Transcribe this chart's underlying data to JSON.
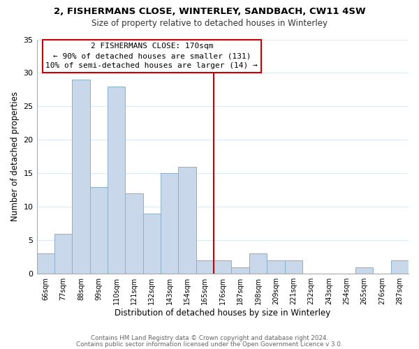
{
  "title": "2, FISHERMANS CLOSE, WINTERLEY, SANDBACH, CW11 4SW",
  "subtitle": "Size of property relative to detached houses in Winterley",
  "xlabel": "Distribution of detached houses by size in Winterley",
  "ylabel": "Number of detached properties",
  "bar_color": "#c8d8ea",
  "bar_edge_color": "#8ab0cc",
  "categories": [
    "66sqm",
    "77sqm",
    "88sqm",
    "99sqm",
    "110sqm",
    "121sqm",
    "132sqm",
    "143sqm",
    "154sqm",
    "165sqm",
    "176sqm",
    "187sqm",
    "198sqm",
    "209sqm",
    "221sqm",
    "232sqm",
    "243sqm",
    "254sqm",
    "265sqm",
    "276sqm",
    "287sqm"
  ],
  "values": [
    3,
    6,
    29,
    13,
    28,
    12,
    9,
    15,
    16,
    2,
    2,
    1,
    3,
    2,
    2,
    0,
    0,
    0,
    1,
    0,
    2
  ],
  "ylim": [
    0,
    35
  ],
  "yticks": [
    0,
    5,
    10,
    15,
    20,
    25,
    30,
    35
  ],
  "annotation_title": "2 FISHERMANS CLOSE: 170sqm",
  "annotation_line1": "← 90% of detached houses are smaller (131)",
  "annotation_line2": "10% of semi-detached houses are larger (14) →",
  "vline_index": 9.5,
  "footer_line1": "Contains HM Land Registry data © Crown copyright and database right 2024.",
  "footer_line2": "Contains public sector information licensed under the Open Government Licence v 3.0.",
  "background_color": "#ffffff",
  "grid_color": "#dde8f0",
  "vline_color": "#cc0000",
  "box_edge_color": "#cc0000"
}
